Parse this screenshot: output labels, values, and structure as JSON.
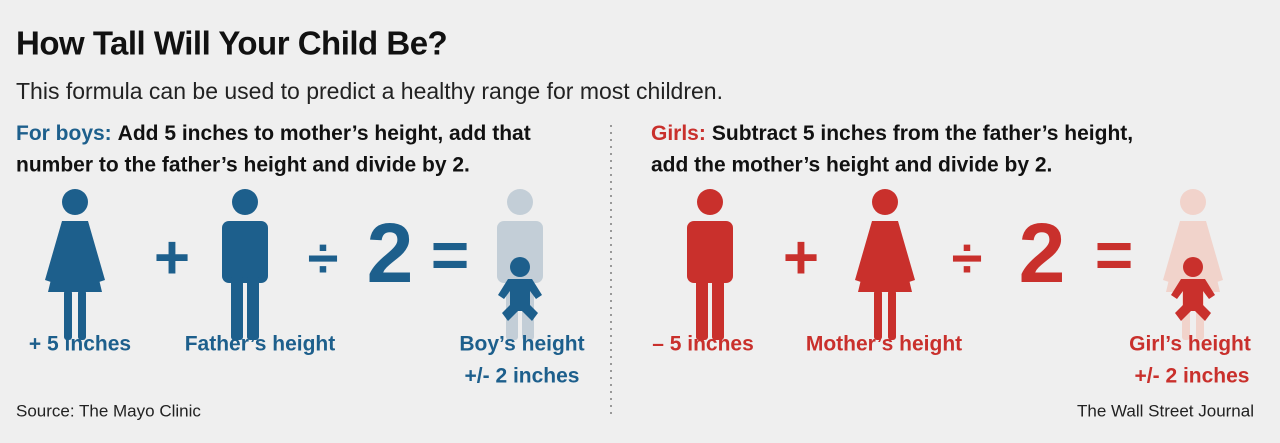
{
  "header": {
    "title": "How Tall Will Your Child Be?",
    "subtitle": "This formula can be used to predict a healthy range for most children."
  },
  "boys": {
    "lead": "For boys:",
    "lines": [
      "Add 5 inches to mother’s height, add that",
      "number to the father’s height and divide by 2."
    ],
    "operators": [
      "+",
      "÷",
      "2",
      "="
    ],
    "labels": [
      "+ 5 inches",
      "Father’s height",
      "Boy’s height",
      "+/- 2 inches"
    ]
  },
  "girls": {
    "lead": "Girls:",
    "lines": [
      "Subtract 5 inches from the father’s height,",
      "add the mother’s height and divide by 2."
    ],
    "operators": [
      "+",
      "÷",
      "2",
      "="
    ],
    "labels": [
      "– 5 inches",
      "Mother’s height",
      "Girl’s height",
      "+/- 2 inches"
    ]
  },
  "footer": {
    "source": "Source: The Mayo Clinic",
    "credit": "The Wall Street Journal"
  }
}
